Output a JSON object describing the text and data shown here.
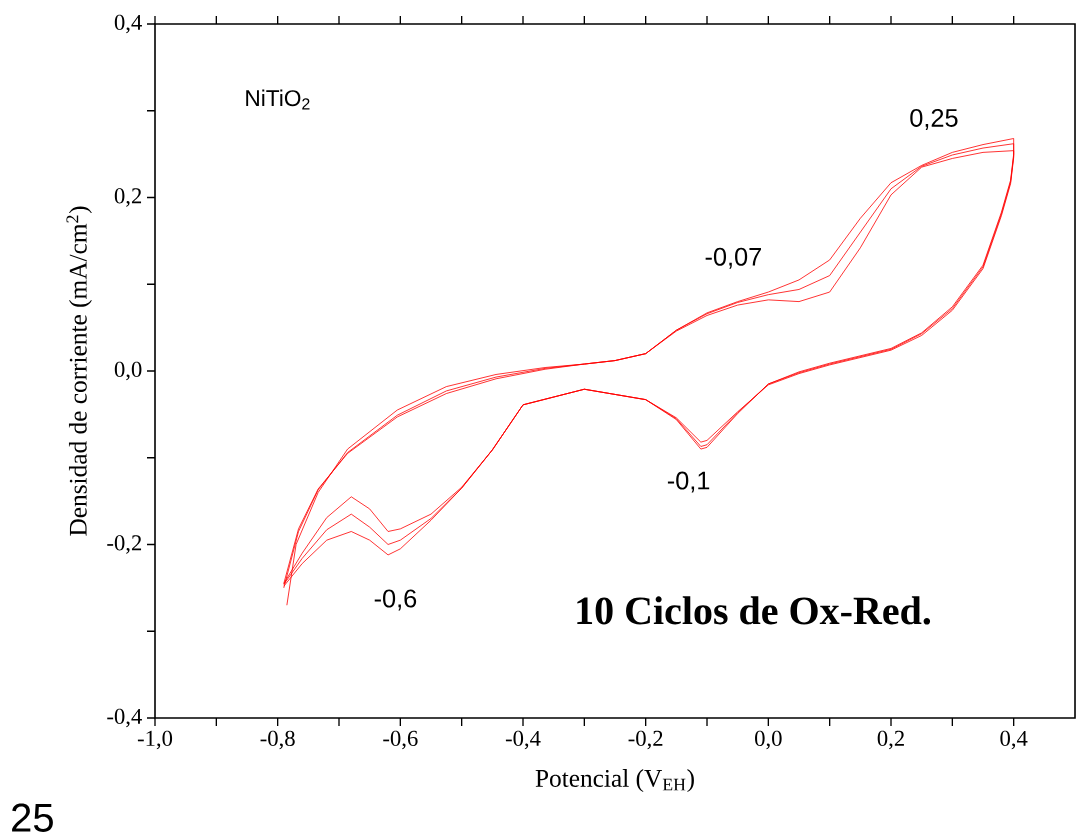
{
  "chart_data": {
    "type": "line",
    "xlabel": "Potencial (V$_{EH}$)",
    "ylabel": "Densidad de corriente (mA/cm$^{2}$)",
    "xlim": [
      -1.0,
      0.5
    ],
    "ylim": [
      -0.4,
      0.4
    ],
    "xticks": [
      {
        "value": -1.0,
        "label": "-1,0"
      },
      {
        "value": -0.9,
        "label": null
      },
      {
        "value": -0.8,
        "label": "-0,8"
      },
      {
        "value": -0.7,
        "label": null
      },
      {
        "value": -0.6,
        "label": "-0,6"
      },
      {
        "value": -0.5,
        "label": null
      },
      {
        "value": -0.4,
        "label": "-0,4"
      },
      {
        "value": -0.3,
        "label": null
      },
      {
        "value": -0.2,
        "label": "-0,2"
      },
      {
        "value": -0.1,
        "label": null
      },
      {
        "value": 0.0,
        "label": "0,0"
      },
      {
        "value": 0.1,
        "label": null
      },
      {
        "value": 0.2,
        "label": "0,2"
      },
      {
        "value": 0.3,
        "label": null
      },
      {
        "value": 0.4,
        "label": "0,4"
      }
    ],
    "yticks": [
      {
        "value": -0.4,
        "label": "-0,4"
      },
      {
        "value": -0.3,
        "label": null
      },
      {
        "value": -0.2,
        "label": "-0,2"
      },
      {
        "value": -0.1,
        "label": null
      },
      {
        "value": 0.0,
        "label": "0,0"
      },
      {
        "value": 0.1,
        "label": null
      },
      {
        "value": 0.2,
        "label": "0,2"
      },
      {
        "value": 0.3,
        "label": null
      },
      {
        "value": 0.4,
        "label": "0,4"
      }
    ],
    "grid": false,
    "marker": "none",
    "line_style": "solid",
    "series": [
      {
        "color": "#ff0000",
        "x": [
          -0.79,
          -0.766,
          -0.734,
          -0.686,
          -0.605,
          -0.525,
          -0.444,
          -0.364,
          -0.3,
          -0.25,
          -0.2,
          -0.15,
          -0.1,
          -0.05,
          0.0,
          0.05,
          0.1,
          0.15,
          0.2,
          0.25,
          0.3,
          0.35,
          0.4,
          0.4,
          0.395,
          0.38,
          0.35,
          0.3,
          0.25,
          0.2,
          0.1,
          0.05,
          0.0,
          -0.05,
          -0.1,
          -0.11,
          -0.15,
          -0.2,
          -0.3,
          -0.4,
          -0.45,
          -0.5,
          -0.55,
          -0.6,
          -0.62,
          -0.65,
          -0.68,
          -0.72,
          -0.76,
          -0.79
        ],
        "values": [
          -0.245,
          -0.182,
          -0.136,
          -0.095,
          -0.053,
          -0.026,
          -0.009,
          0.002,
          0.008,
          0.012,
          0.02,
          0.047,
          0.067,
          0.08,
          0.091,
          0.105,
          0.128,
          0.176,
          0.217,
          0.237,
          0.252,
          0.261,
          0.268,
          0.25,
          0.22,
          0.183,
          0.122,
          0.074,
          0.044,
          0.026,
          0.009,
          -0.001,
          -0.015,
          -0.049,
          -0.088,
          -0.09,
          -0.056,
          -0.033,
          -0.021,
          -0.039,
          -0.091,
          -0.135,
          -0.172,
          -0.205,
          -0.212,
          -0.195,
          -0.185,
          -0.195,
          -0.222,
          -0.248
        ]
      },
      {
        "color": "#ff0000",
        "x": [
          -0.79,
          -0.766,
          -0.734,
          -0.686,
          -0.605,
          -0.525,
          -0.444,
          -0.364,
          -0.3,
          -0.25,
          -0.2,
          -0.15,
          -0.1,
          -0.05,
          0.0,
          0.05,
          0.1,
          0.15,
          0.2,
          0.25,
          0.3,
          0.35,
          0.4,
          0.4,
          0.395,
          0.38,
          0.35,
          0.3,
          0.25,
          0.2,
          0.1,
          0.05,
          0.0,
          -0.05,
          -0.1,
          -0.11,
          -0.15,
          -0.2,
          -0.3,
          -0.4,
          -0.45,
          -0.5,
          -0.55,
          -0.6,
          -0.62,
          -0.65,
          -0.68,
          -0.72,
          -0.76,
          -0.79
        ],
        "values": [
          -0.25,
          -0.185,
          -0.137,
          -0.094,
          -0.051,
          -0.023,
          -0.007,
          0.003,
          0.008,
          0.012,
          0.02,
          0.047,
          0.066,
          0.079,
          0.088,
          0.094,
          0.11,
          0.16,
          0.21,
          0.236,
          0.249,
          0.257,
          0.262,
          0.248,
          0.218,
          0.181,
          0.12,
          0.072,
          0.043,
          0.025,
          0.008,
          -0.002,
          -0.015,
          -0.048,
          -0.085,
          -0.087,
          -0.055,
          -0.033,
          -0.021,
          -0.039,
          -0.091,
          -0.135,
          -0.17,
          -0.195,
          -0.2,
          -0.18,
          -0.165,
          -0.183,
          -0.216,
          -0.246
        ]
      },
      {
        "color": "#ff0000",
        "x": [
          -0.785,
          -0.77,
          -0.734,
          -0.686,
          -0.605,
          -0.525,
          -0.444,
          -0.364,
          -0.3,
          -0.25,
          -0.2,
          -0.15,
          -0.1,
          -0.05,
          0.0,
          0.05,
          0.1,
          0.15,
          0.2,
          0.25,
          0.3,
          0.35,
          0.4,
          0.4,
          0.395,
          0.38,
          0.35,
          0.3,
          0.25,
          0.2,
          0.1,
          0.05,
          0.0,
          -0.05,
          -0.1,
          -0.11,
          -0.15,
          -0.2,
          -0.3,
          -0.4,
          -0.45,
          -0.5,
          -0.55,
          -0.6,
          -0.62,
          -0.65,
          -0.68,
          -0.72,
          -0.76,
          -0.79
        ],
        "values": [
          -0.27,
          -0.2,
          -0.14,
          -0.09,
          -0.045,
          -0.018,
          -0.004,
          0.004,
          0.008,
          0.012,
          0.02,
          0.046,
          0.064,
          0.076,
          0.082,
          0.08,
          0.091,
          0.142,
          0.203,
          0.235,
          0.245,
          0.252,
          0.254,
          0.246,
          0.216,
          0.179,
          0.118,
          0.07,
          0.041,
          0.024,
          0.007,
          -0.003,
          -0.016,
          -0.047,
          -0.08,
          -0.082,
          -0.054,
          -0.033,
          -0.021,
          -0.039,
          -0.091,
          -0.134,
          -0.165,
          -0.182,
          -0.185,
          -0.159,
          -0.145,
          -0.169,
          -0.21,
          -0.245
        ]
      }
    ],
    "annotations": [
      "NiTiO$_{2}$",
      "10 Ciclos de Ox-Red.",
      "25",
      "-0,6",
      "-0,1",
      "-0,07",
      "0,25"
    ]
  }
}
